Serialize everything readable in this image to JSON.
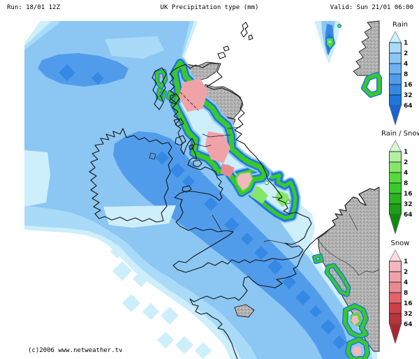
{
  "header": {
    "run": "Run: 18/01 12Z",
    "title": "UK Precipitation type (mm)",
    "valid": "Valid: Sun 21/01 06:00"
  },
  "footer": {
    "copyright": "(c)2006 www.netweather.tv"
  },
  "legends": [
    {
      "id": "rain",
      "title": "Rain",
      "values": [
        "1",
        "2",
        "4",
        "8",
        "16",
        "32",
        "64"
      ],
      "colors": [
        "#cdeefb",
        "#a9dbf8",
        "#8cc6f3",
        "#6fb2ef",
        "#519cea",
        "#3589e5",
        "#2076df",
        "#1b63d0"
      ]
    },
    {
      "id": "mix",
      "title": "Rain / Snow",
      "values": [
        "1",
        "2",
        "4",
        "8",
        "16",
        "32",
        "64"
      ],
      "colors": [
        "#d9f7d1",
        "#b3f0a2",
        "#85e768",
        "#55da3a",
        "#38ca28",
        "#2ab41e",
        "#1e9e15",
        "#13880e"
      ]
    },
    {
      "id": "snow",
      "title": "Snow",
      "values": [
        "1",
        "2",
        "4",
        "8",
        "16",
        "32",
        "64"
      ],
      "colors": [
        "#fbd9dd",
        "#f4b7bd",
        "#efa2a8",
        "#e98a91",
        "#e3636b",
        "#cd4148",
        "#b9353c",
        "#a9282f"
      ]
    }
  ],
  "map": {
    "terrain_color": "#b2b2b2",
    "no_precip_color": "#ffffff",
    "coastline_color": "#161616"
  }
}
